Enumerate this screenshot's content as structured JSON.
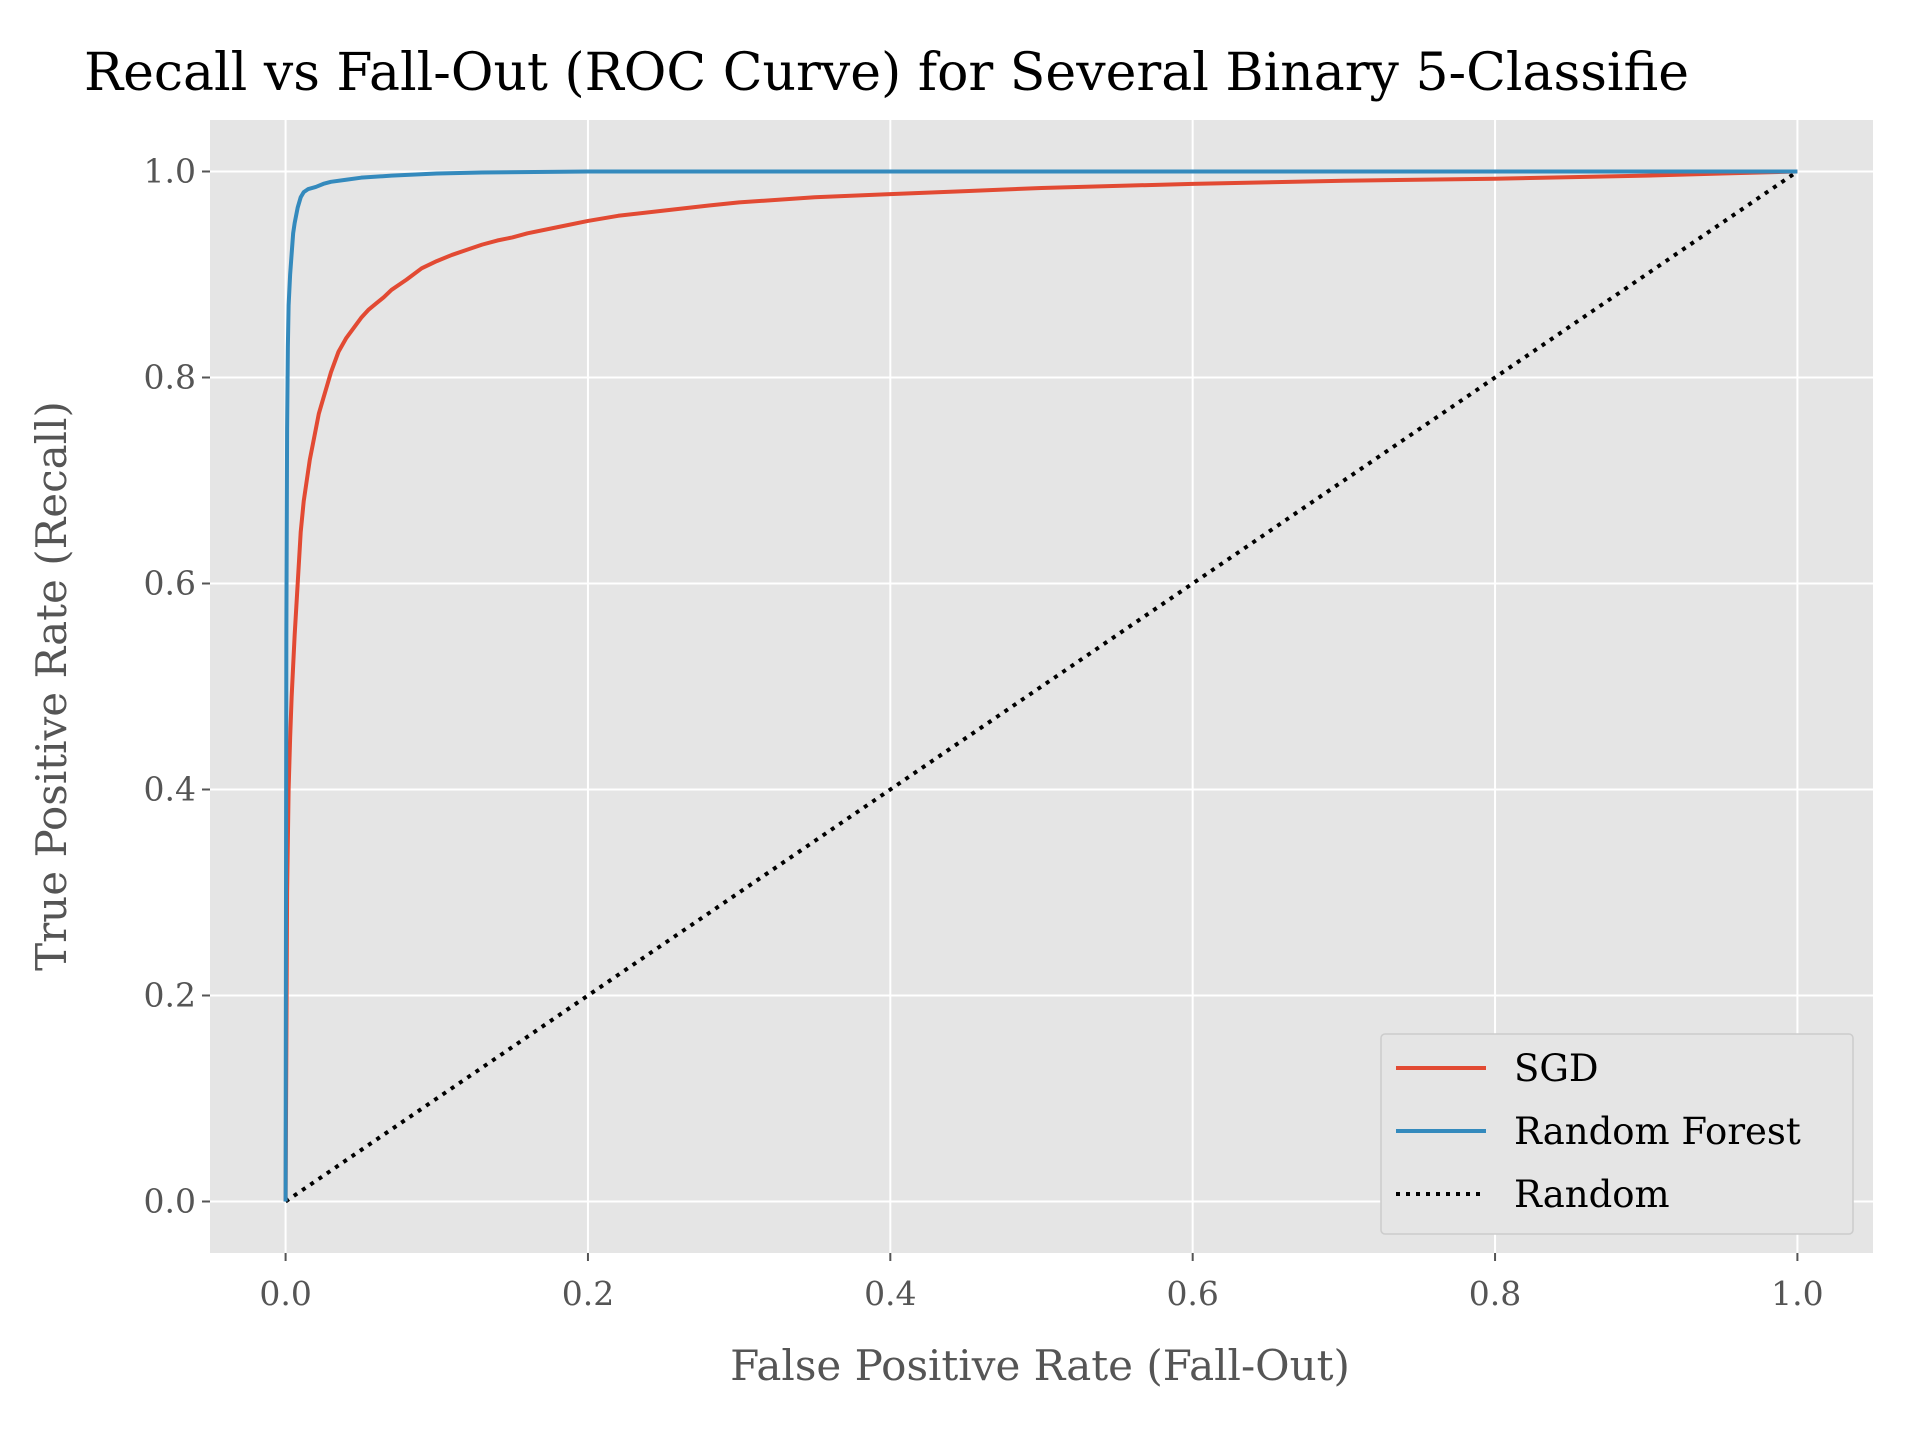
{
  "chart_data": {
    "type": "line",
    "title": "Recall vs Fall-Out (ROC Curve) for Several Binary 5-Classifie",
    "xlabel": "False Positive Rate (Fall-Out)",
    "ylabel": "True Positive Rate (Recall)",
    "xlim": [
      -0.05,
      1.05
    ],
    "ylim": [
      -0.05,
      1.05
    ],
    "xticks": [
      "0.0",
      "0.2",
      "0.4",
      "0.6",
      "0.8",
      "1.0"
    ],
    "yticks": [
      "0.0",
      "0.2",
      "0.4",
      "0.6",
      "0.8",
      "1.0"
    ],
    "grid": true,
    "legend_position": "lower-right",
    "colors": {
      "background": "#e5e5e5",
      "grid": "#ffffff",
      "sgd": "#e24a33",
      "random_forest": "#348abd",
      "random": "#000000"
    },
    "series": [
      {
        "name": "SGD",
        "style": "solid",
        "x": [
          0,
          0.0005,
          0.001,
          0.002,
          0.003,
          0.004,
          0.005,
          0.006,
          0.008,
          0.01,
          0.012,
          0.014,
          0.016,
          0.018,
          0.02,
          0.022,
          0.025,
          0.028,
          0.03,
          0.035,
          0.04,
          0.045,
          0.05,
          0.055,
          0.06,
          0.065,
          0.07,
          0.08,
          0.09,
          0.1,
          0.11,
          0.12,
          0.13,
          0.14,
          0.15,
          0.16,
          0.18,
          0.2,
          0.22,
          0.25,
          0.28,
          0.3,
          0.35,
          0.4,
          0.45,
          0.5,
          0.6,
          0.7,
          0.8,
          0.9,
          0.95,
          1.0
        ],
        "y": [
          0,
          0.15,
          0.3,
          0.4,
          0.45,
          0.49,
          0.52,
          0.55,
          0.6,
          0.65,
          0.68,
          0.7,
          0.72,
          0.735,
          0.75,
          0.765,
          0.78,
          0.795,
          0.805,
          0.825,
          0.838,
          0.848,
          0.858,
          0.866,
          0.872,
          0.878,
          0.885,
          0.895,
          0.906,
          0.913,
          0.919,
          0.924,
          0.929,
          0.933,
          0.936,
          0.94,
          0.946,
          0.952,
          0.957,
          0.962,
          0.967,
          0.97,
          0.975,
          0.978,
          0.981,
          0.984,
          0.988,
          0.991,
          0.993,
          0.996,
          0.998,
          1.0
        ]
      },
      {
        "name": "Random Forest",
        "style": "solid",
        "x": [
          0,
          0.0005,
          0.001,
          0.0015,
          0.002,
          0.003,
          0.004,
          0.005,
          0.006,
          0.008,
          0.01,
          0.012,
          0.015,
          0.02,
          0.025,
          0.03,
          0.04,
          0.05,
          0.07,
          0.1,
          0.13,
          0.2,
          0.3,
          0.5,
          0.7,
          1.0
        ],
        "y": [
          0,
          0.55,
          0.75,
          0.83,
          0.87,
          0.9,
          0.92,
          0.94,
          0.95,
          0.965,
          0.975,
          0.98,
          0.983,
          0.985,
          0.988,
          0.99,
          0.992,
          0.994,
          0.996,
          0.998,
          0.999,
          1.0,
          1.0,
          1.0,
          1.0,
          1.0
        ]
      },
      {
        "name": "Random",
        "style": "dotted",
        "x": [
          0,
          1
        ],
        "y": [
          0,
          1
        ]
      }
    ]
  }
}
